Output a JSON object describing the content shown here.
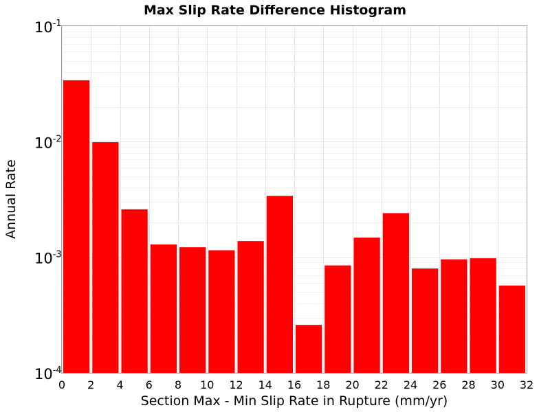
{
  "chart_data": {
    "type": "bar",
    "title": "Max Slip Rate Difference Histogram",
    "xlabel": "Section Max - Min Slip Rate in Rupture (mm/yr)",
    "ylabel": "Annual Rate",
    "xlim": [
      0,
      32
    ],
    "ylim": [
      0.0001,
      0.1
    ],
    "yscale": "log",
    "bin_width": 2,
    "grid": true,
    "legend": "none",
    "bar_color": "#ff0000",
    "x_ticks": [
      0,
      2,
      4,
      6,
      8,
      10,
      12,
      14,
      16,
      18,
      20,
      22,
      24,
      26,
      28,
      30,
      32
    ],
    "y_ticks": [
      {
        "base": "10",
        "exp": "-1",
        "value": 0.1
      },
      {
        "base": "10",
        "exp": "-2",
        "value": 0.01
      },
      {
        "base": "10",
        "exp": "-3",
        "value": 0.001
      },
      {
        "base": "10",
        "exp": "-4",
        "value": 0.0001
      }
    ],
    "bins": [
      {
        "x": 1,
        "value": 0.034
      },
      {
        "x": 3,
        "value": 0.0099
      },
      {
        "x": 5,
        "value": 0.0026
      },
      {
        "x": 7,
        "value": 0.00129
      },
      {
        "x": 9,
        "value": 0.00122
      },
      {
        "x": 11,
        "value": 0.00115
      },
      {
        "x": 13,
        "value": 0.00138
      },
      {
        "x": 15,
        "value": 0.0034
      },
      {
        "x": 17,
        "value": 0.00026
      },
      {
        "x": 19,
        "value": 0.00085
      },
      {
        "x": 21,
        "value": 0.00148
      },
      {
        "x": 23,
        "value": 0.00241
      },
      {
        "x": 25,
        "value": 0.0008
      },
      {
        "x": 27,
        "value": 0.00096
      },
      {
        "x": 29,
        "value": 0.00098
      },
      {
        "x": 31,
        "value": 0.00057
      }
    ]
  }
}
